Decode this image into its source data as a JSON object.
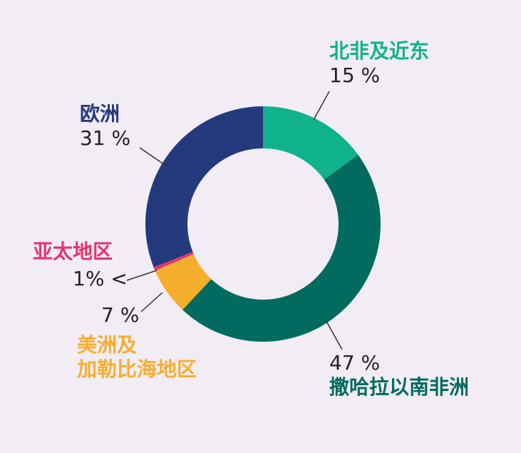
{
  "chart_data": {
    "type": "pie",
    "variant": "donut",
    "slices": [
      {
        "label": "北非及近东",
        "value": 15,
        "value_label": "15 %",
        "color": "#0fb28c"
      },
      {
        "label": "撒哈拉以南非洲",
        "value": 47,
        "value_label": "47 %",
        "color": "#006b5e"
      },
      {
        "label_lines": [
          "美洲及",
          "加勒比海地区"
        ],
        "value": 6.5,
        "value_label": "7 %",
        "color": "#f6ae2d"
      },
      {
        "label": "亚太地区",
        "value": 0.5,
        "value_label": "1% <",
        "color": "#e6336b"
      },
      {
        "label": "欧洲",
        "value": 31,
        "value_label": "31 %",
        "color": "#253a7d"
      }
    ]
  }
}
